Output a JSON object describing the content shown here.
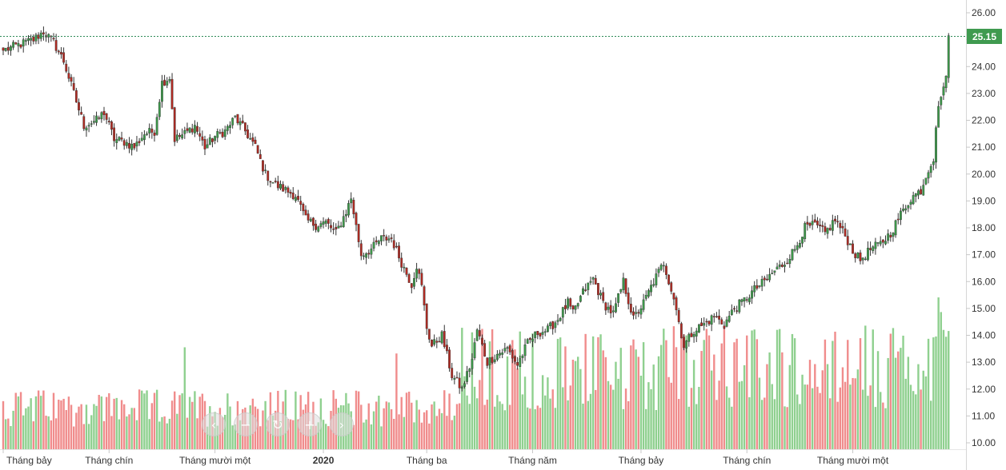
{
  "chart_data": {
    "type": "candlestick",
    "last_price_label": "25.15",
    "last_price": 25.15,
    "ylim": [
      9.8,
      26.35
    ],
    "y_ticks": [
      "26.00",
      "25.00",
      "24.00",
      "23.00",
      "22.00",
      "21.00",
      "20.00",
      "19.00",
      "18.00",
      "17.00",
      "16.00",
      "15.00",
      "14.00",
      "13.00",
      "12.00",
      "11.00",
      "10.00"
    ],
    "x_ticks": [
      {
        "label": "Tháng bảy",
        "bar": 0,
        "bold": false
      },
      {
        "label": "Tháng chín",
        "bar": 42,
        "bold": false
      },
      {
        "label": "Tháng mười một",
        "bar": 84,
        "bold": false
      },
      {
        "label": "2020",
        "bar": 127,
        "bold": true
      },
      {
        "label": "Tháng ba",
        "bar": 168,
        "bold": false
      },
      {
        "label": "Tháng năm",
        "bar": 210,
        "bold": false
      },
      {
        "label": "Tháng bảy",
        "bar": 253,
        "bold": false
      },
      {
        "label": "Tháng chín",
        "bar": 295,
        "bold": false
      },
      {
        "label": "Tháng mười một",
        "bar": 337,
        "bold": false
      }
    ],
    "close_anchors": [
      [
        0,
        24.6
      ],
      [
        6,
        24.8
      ],
      [
        12,
        25.0
      ],
      [
        16,
        25.3
      ],
      [
        20,
        24.9
      ],
      [
        24,
        24.2
      ],
      [
        28,
        23.0
      ],
      [
        32,
        21.8
      ],
      [
        37,
        22.0
      ],
      [
        40,
        22.3
      ],
      [
        44,
        21.3
      ],
      [
        48,
        21.2
      ],
      [
        52,
        21.0
      ],
      [
        56,
        21.5
      ],
      [
        60,
        21.6
      ],
      [
        63,
        23.4
      ],
      [
        66,
        23.6
      ],
      [
        68,
        21.3
      ],
      [
        72,
        21.5
      ],
      [
        76,
        21.8
      ],
      [
        80,
        21.0
      ],
      [
        84,
        21.4
      ],
      [
        88,
        21.6
      ],
      [
        92,
        22.1
      ],
      [
        96,
        21.6
      ],
      [
        100,
        21.0
      ],
      [
        104,
        20.0
      ],
      [
        108,
        19.6
      ],
      [
        112,
        19.4
      ],
      [
        116,
        19.2
      ],
      [
        120,
        18.3
      ],
      [
        124,
        18.1
      ],
      [
        128,
        18.2
      ],
      [
        132,
        17.8
      ],
      [
        136,
        18.6
      ],
      [
        138,
        19.1
      ],
      [
        142,
        17.0
      ],
      [
        146,
        17.2
      ],
      [
        150,
        17.6
      ],
      [
        154,
        17.6
      ],
      [
        158,
        16.7
      ],
      [
        162,
        15.9
      ],
      [
        164,
        16.6
      ],
      [
        166,
        15.8
      ],
      [
        168,
        14.3
      ],
      [
        170,
        13.6
      ],
      [
        174,
        14.0
      ],
      [
        178,
        12.5
      ],
      [
        182,
        12.0
      ],
      [
        186,
        13.1
      ],
      [
        188,
        14.2
      ],
      [
        192,
        13.0
      ],
      [
        196,
        13.3
      ],
      [
        200,
        13.5
      ],
      [
        204,
        12.9
      ],
      [
        208,
        13.7
      ],
      [
        212,
        14.1
      ],
      [
        216,
        14.2
      ],
      [
        220,
        14.6
      ],
      [
        224,
        15.2
      ],
      [
        226,
        14.8
      ],
      [
        230,
        15.6
      ],
      [
        234,
        16.1
      ],
      [
        238,
        15.2
      ],
      [
        242,
        14.8
      ],
      [
        246,
        16.0
      ],
      [
        250,
        14.6
      ],
      [
        254,
        15.2
      ],
      [
        258,
        16.0
      ],
      [
        262,
        16.7
      ],
      [
        266,
        15.4
      ],
      [
        270,
        13.6
      ],
      [
        274,
        14.2
      ],
      [
        278,
        14.4
      ],
      [
        282,
        14.7
      ],
      [
        286,
        14.4
      ],
      [
        290,
        15.0
      ],
      [
        294,
        15.3
      ],
      [
        298,
        15.7
      ],
      [
        302,
        16.0
      ],
      [
        306,
        16.4
      ],
      [
        310,
        16.7
      ],
      [
        314,
        17.2
      ],
      [
        318,
        18.0
      ],
      [
        322,
        18.1
      ],
      [
        326,
        17.8
      ],
      [
        330,
        18.3
      ],
      [
        334,
        17.7
      ],
      [
        338,
        17.0
      ],
      [
        340,
        16.8
      ],
      [
        344,
        17.2
      ],
      [
        348,
        17.4
      ],
      [
        352,
        17.8
      ],
      [
        356,
        18.5
      ],
      [
        360,
        19.1
      ],
      [
        364,
        19.4
      ],
      [
        367,
        20.2
      ],
      [
        369,
        20.6
      ],
      [
        370,
        21.8
      ],
      [
        372,
        23.0
      ],
      [
        374,
        23.5
      ],
      [
        375,
        25.15
      ]
    ],
    "volume_ylim": [
      0,
      10
    ]
  }
}
